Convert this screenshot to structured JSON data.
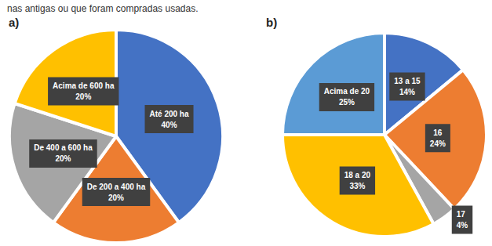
{
  "caption": "nas antigas ou que foram compradas usadas.",
  "chart_data": [
    {
      "type": "pie",
      "title": "a)",
      "categories": [
        "Até 200 ha",
        "De 200 a 400 ha",
        "De 400 a 600 ha",
        "Acima de 600 ha"
      ],
      "values": [
        40,
        20,
        20,
        20
      ],
      "value_labels": [
        "40%",
        "20%",
        "20%",
        "20%"
      ],
      "colors": [
        "#4472c4",
        "#ed7d31",
        "#a5a5a5",
        "#ffc000"
      ],
      "data_labels": true
    },
    {
      "type": "pie",
      "title": "b)",
      "categories": [
        "13 a 15",
        "16",
        "17",
        "18 a 20",
        "Acima de 20"
      ],
      "values": [
        14,
        24,
        4,
        33,
        25
      ],
      "value_labels": [
        "14%",
        "24%",
        "4%",
        "33%",
        "25%"
      ],
      "colors": [
        "#4472c4",
        "#ed7d31",
        "#a5a5a5",
        "#ffc000",
        "#5b9bd5"
      ],
      "data_labels": true
    }
  ]
}
